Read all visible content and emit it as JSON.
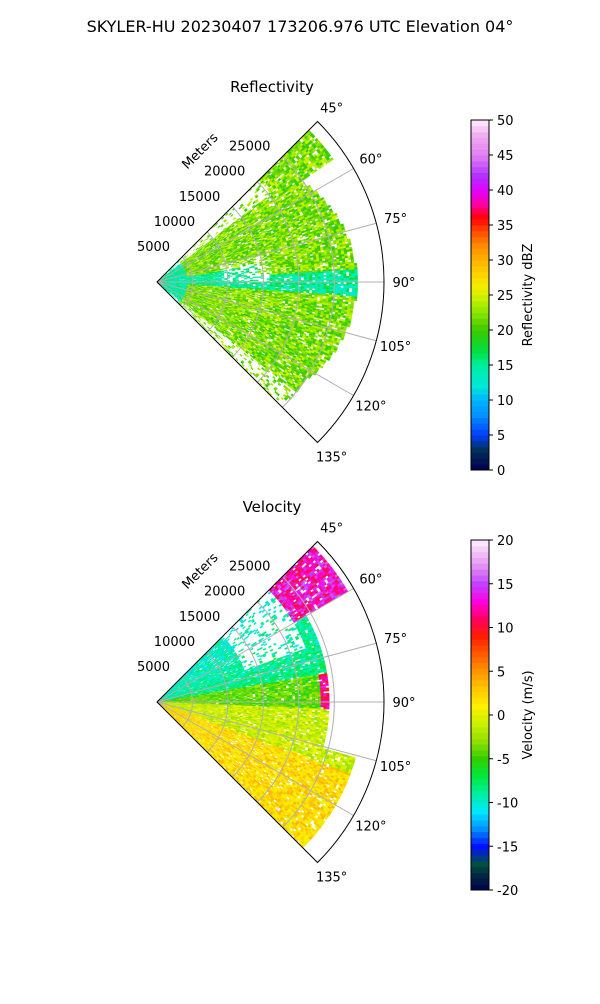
{
  "figure_title": "SKYLER-HU  20230407  173206.976 UTC Elevation 04°",
  "chart_data": [
    {
      "type": "heatmap",
      "title": "Reflectivity",
      "range_label": "Meters",
      "range_ticks": [
        5000,
        10000,
        15000,
        20000,
        25000
      ],
      "range_ticks_text": [
        "5000",
        "10000",
        "15000",
        "20000",
        "25000"
      ],
      "azimuth_range": [
        45,
        135
      ],
      "azimuth_ticks": [
        45,
        60,
        75,
        90,
        105,
        120,
        135
      ],
      "azimuth_ticks_text": [
        "45°",
        "60°",
        "75°",
        "90°",
        "105°",
        "120°",
        "135°"
      ],
      "colorbar_label": "Reflectivity dBZ",
      "colorbar_range": [
        0,
        50
      ],
      "colorbar_ticks": [
        0,
        5,
        10,
        15,
        20,
        25,
        30,
        35,
        40,
        45,
        50
      ],
      "colorbar_ticks_text": [
        "0",
        "5",
        "10",
        "15",
        "20",
        "25",
        "30",
        "35",
        "40",
        "45",
        "50"
      ],
      "grid": true
    },
    {
      "type": "heatmap",
      "title": "Velocity",
      "range_label": "Meters",
      "range_ticks": [
        5000,
        10000,
        15000,
        20000,
        25000
      ],
      "range_ticks_text": [
        "5000",
        "10000",
        "15000",
        "20000",
        "25000"
      ],
      "azimuth_range": [
        45,
        135
      ],
      "azimuth_ticks": [
        45,
        60,
        75,
        90,
        105,
        120,
        135
      ],
      "azimuth_ticks_text": [
        "45°",
        "60°",
        "75°",
        "90°",
        "105°",
        "120°",
        "135°"
      ],
      "colorbar_label": "Velocity (m/s)",
      "colorbar_range": [
        -20,
        20
      ],
      "colorbar_ticks": [
        -20,
        -15,
        -10,
        -5,
        0,
        5,
        10,
        15,
        20
      ],
      "colorbar_ticks_text": [
        "-20",
        "-15",
        "-10",
        "-5",
        "0",
        "5",
        "10",
        "15",
        "20"
      ],
      "grid": true
    }
  ],
  "colors": {
    "reflectivity_base": "#5ee000",
    "reflectivity_low": "#00e8c0",
    "velocity_inbound": "#00e8e0",
    "velocity_zero": "#c8f000",
    "velocity_outbound": "#ff1a40"
  }
}
